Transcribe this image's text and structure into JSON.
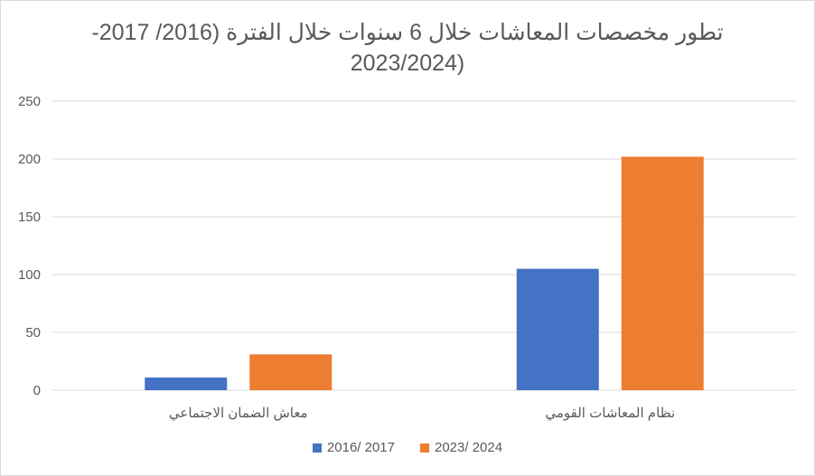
{
  "chart_data": {
    "type": "bar",
    "title_line1": "تطور مخصصات المعاشات  خلال 6 سنوات خلال الفترة (2016/ 2017-",
    "title_line2": "2023/2024)",
    "categories": [
      "معاش الضمان الاجتماعي",
      "نظام المعاشات القومي"
    ],
    "series": [
      {
        "name": "2016/ 2017",
        "values": [
          11,
          105
        ],
        "color": "#4472C4"
      },
      {
        "name": "2023/ 2024",
        "values": [
          31,
          202
        ],
        "color": "#ED7D31"
      }
    ],
    "ylim": [
      0,
      250
    ],
    "yticks": [
      "0",
      "50",
      "100",
      "150",
      "200",
      "250"
    ],
    "grid": true,
    "legend_position": "bottom",
    "gridline_color": "#d9d9d9"
  }
}
